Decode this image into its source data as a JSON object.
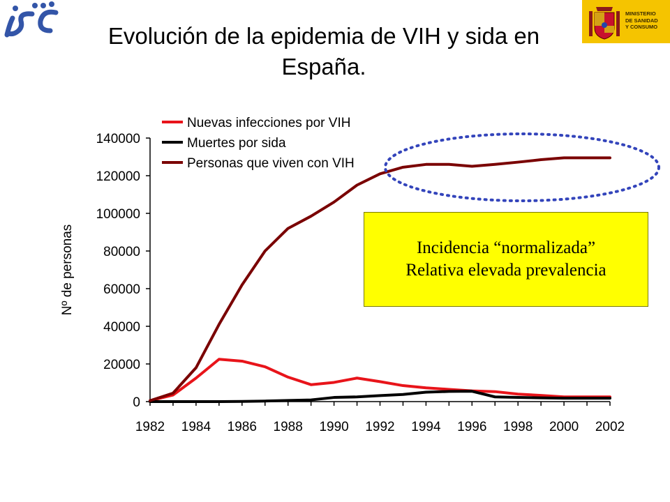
{
  "slide": {
    "title_line1": "Evolución de la epidemia de VIH y sida en",
    "title_line2": "España."
  },
  "logos": {
    "left": {
      "text": "isc",
      "color": "#3355a8"
    },
    "right": {
      "lines": [
        "MINISTERIO",
        "DE SANIDAD",
        "Y CONSUMO"
      ],
      "background": "#f5c400"
    }
  },
  "callout": {
    "line1": "Incidencia “normalizada”",
    "line2": "Relativa elevada prevalencia",
    "background": "#ffff00"
  },
  "chart_data": {
    "type": "line",
    "title": "",
    "xlabel": "",
    "ylabel": "Nº de personas",
    "x": [
      1982,
      1983,
      1984,
      1985,
      1986,
      1987,
      1988,
      1989,
      1990,
      1991,
      1992,
      1993,
      1994,
      1995,
      1996,
      1997,
      1998,
      1999,
      2000,
      2001,
      2002
    ],
    "xticks": [
      "1982",
      "1984",
      "1986",
      "1988",
      "1990",
      "1992",
      "1994",
      "1996",
      "1998",
      "2000",
      "2002"
    ],
    "yticks": [
      "0",
      "20000",
      "40000",
      "60000",
      "80000",
      "100000",
      "120000",
      "140000"
    ],
    "xlim": [
      1982,
      2002
    ],
    "ylim": [
      0,
      140000
    ],
    "grid": false,
    "legend_position": "top-left",
    "series": [
      {
        "name": "Nuevas infecciones por VIH",
        "color": "#e8141a",
        "values": [
          500,
          3500,
          12500,
          22500,
          21500,
          18500,
          13000,
          9000,
          10200,
          12500,
          10600,
          8500,
          7300,
          6500,
          5700,
          5300,
          4000,
          3300,
          2500,
          2500,
          2500
        ]
      },
      {
        "name": "Muertes por sida",
        "color": "#000000",
        "values": [
          0,
          0,
          0,
          0,
          100,
          300,
          600,
          900,
          2200,
          2500,
          3200,
          3800,
          5000,
          5400,
          5500,
          2500,
          2200,
          2000,
          1800,
          1800,
          1800
        ]
      },
      {
        "name": "Personas que viven con VIH",
        "color": "#7a0000",
        "values": [
          500,
          4500,
          18000,
          41000,
          62000,
          80000,
          92000,
          98500,
          106000,
          115000,
          121000,
          124500,
          126000,
          126000,
          125000,
          126000,
          127200,
          128500,
          129500,
          129500,
          129500
        ]
      }
    ],
    "annotation": {
      "shape": "dotted-ellipse",
      "color": "#3344bb",
      "target": "Personas que viven con VIH 1993–2002"
    }
  }
}
